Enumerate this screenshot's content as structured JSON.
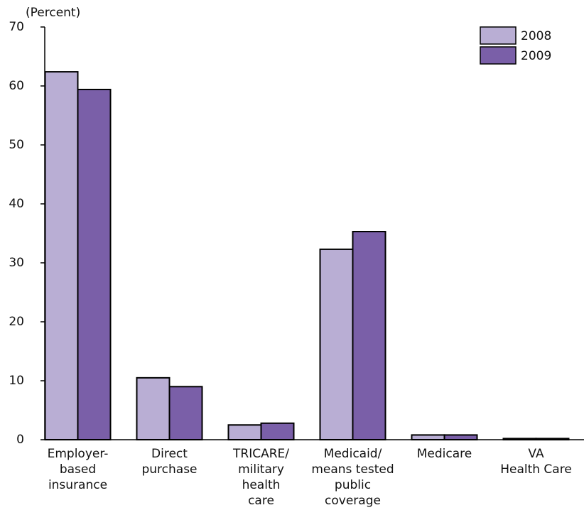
{
  "chart_data": {
    "type": "bar",
    "y_label": "(Percent)",
    "categories": [
      [
        "Employer-",
        "based",
        "insurance"
      ],
      [
        "Direct",
        "purchase"
      ],
      [
        "TRICARE/",
        "military",
        "health",
        "care"
      ],
      [
        "Medicaid/",
        "means tested",
        "public",
        "coverage"
      ],
      [
        "Medicare"
      ],
      [
        "VA",
        "Health Care"
      ]
    ],
    "series": [
      {
        "name": "2008",
        "color": "#b9aed4",
        "values": [
          62.4,
          10.5,
          2.5,
          32.3,
          0.8,
          0.2
        ]
      },
      {
        "name": "2009",
        "color": "#7a5fa8",
        "values": [
          59.4,
          9.0,
          2.8,
          35.3,
          0.8,
          0.2
        ]
      }
    ],
    "ylim": [
      0,
      70
    ],
    "yticks": [
      0,
      10,
      20,
      30,
      40,
      50,
      60,
      70
    ],
    "legend": "top-right"
  }
}
